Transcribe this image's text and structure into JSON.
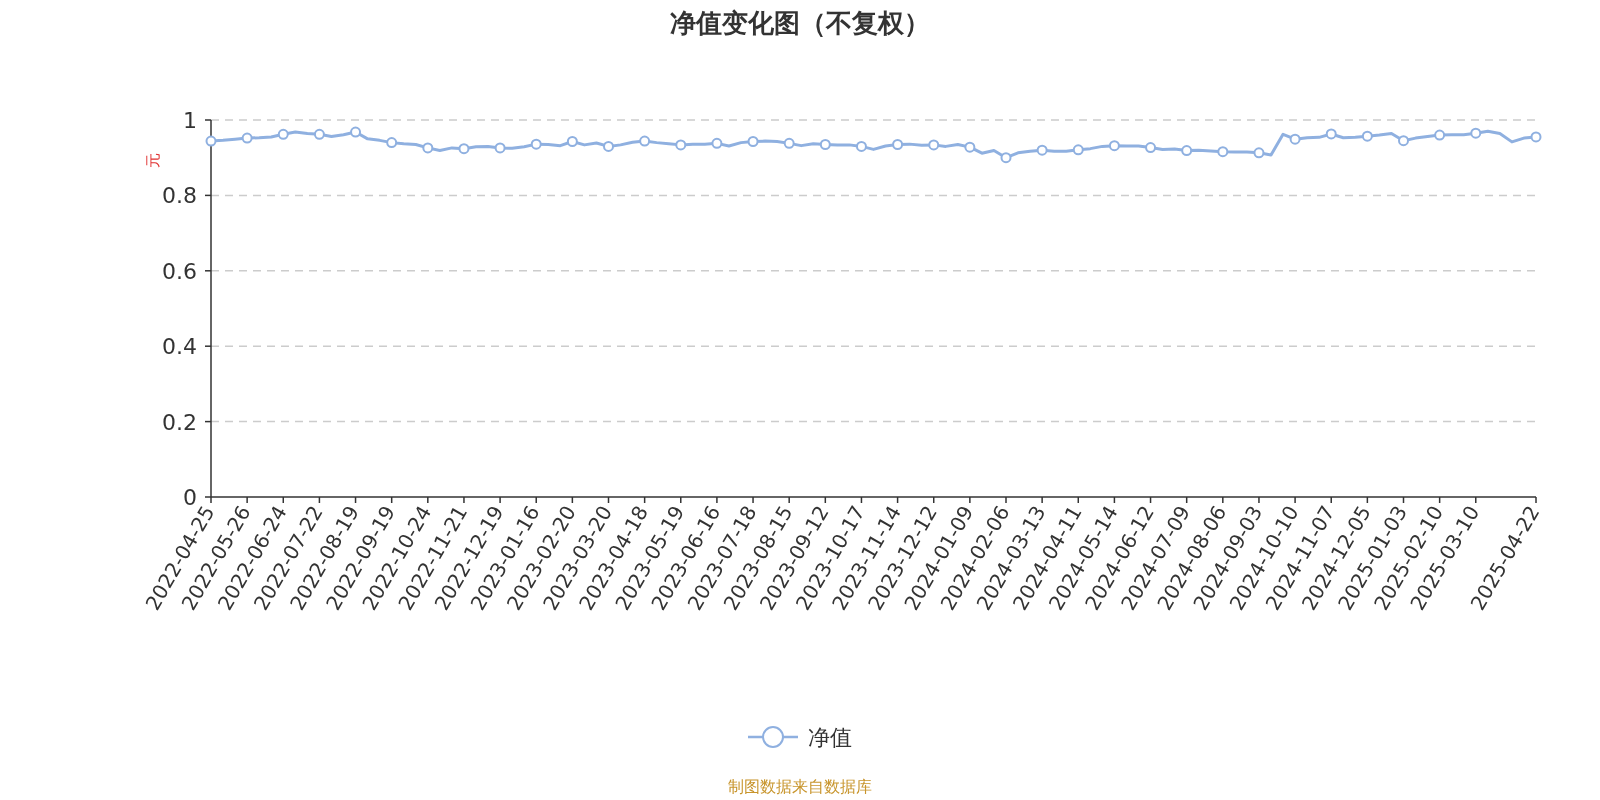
{
  "chart_data": {
    "type": "line",
    "title": "净值变化图（不复权）",
    "ylabel": "元",
    "categories": [
      "2022-04-25",
      null,
      null,
      "2022-05-26",
      null,
      null,
      "2022-06-24",
      null,
      null,
      "2022-07-22",
      null,
      null,
      "2022-08-19",
      null,
      null,
      "2022-09-19",
      null,
      null,
      "2022-10-24",
      null,
      null,
      "2022-11-21",
      null,
      null,
      "2022-12-19",
      null,
      null,
      "2023-01-16",
      null,
      null,
      "2023-02-20",
      null,
      null,
      "2023-03-20",
      null,
      null,
      "2023-04-18",
      null,
      null,
      "2023-05-19",
      null,
      null,
      "2023-06-16",
      null,
      null,
      "2023-07-18",
      null,
      null,
      "2023-08-15",
      null,
      null,
      "2023-09-12",
      null,
      null,
      "2023-10-17",
      null,
      null,
      "2023-11-14",
      null,
      null,
      "2023-12-12",
      null,
      null,
      "2024-01-09",
      null,
      null,
      "2024-02-06",
      null,
      null,
      "2024-03-13",
      null,
      null,
      "2024-04-11",
      null,
      null,
      "2024-05-14",
      null,
      null,
      "2024-06-12",
      null,
      null,
      "2024-07-09",
      null,
      null,
      "2024-08-06",
      null,
      null,
      "2024-09-03",
      null,
      null,
      "2024-10-10",
      null,
      null,
      "2024-11-07",
      null,
      null,
      "2024-12-05",
      null,
      null,
      "2025-01-03",
      null,
      null,
      "2025-02-10",
      null,
      null,
      "2025-03-10",
      null,
      null,
      null,
      null,
      "2025-04-22"
    ],
    "series": [
      {
        "name": "净值",
        "color": "#8fb0e0",
        "values": [
          0.944,
          0.946,
          0.949,
          0.952,
          0.953,
          0.955,
          0.962,
          0.968,
          0.964,
          0.962,
          0.956,
          0.961,
          0.968,
          0.95,
          0.946,
          0.94,
          0.937,
          0.935,
          0.926,
          0.919,
          0.926,
          0.924,
          0.929,
          0.93,
          0.926,
          0.925,
          0.929,
          0.936,
          0.935,
          0.932,
          0.943,
          0.934,
          0.939,
          0.93,
          0.934,
          0.941,
          0.944,
          0.94,
          0.937,
          0.934,
          0.936,
          0.936,
          0.938,
          0.931,
          0.94,
          0.943,
          0.944,
          0.943,
          0.938,
          0.932,
          0.937,
          0.935,
          0.934,
          0.934,
          0.93,
          0.922,
          0.931,
          0.935,
          0.936,
          0.933,
          0.934,
          0.93,
          0.935,
          0.928,
          0.912,
          0.919,
          0.9,
          0.913,
          0.917,
          0.92,
          0.917,
          0.917,
          0.921,
          0.924,
          0.93,
          0.932,
          0.931,
          0.931,
          0.927,
          0.922,
          0.923,
          0.919,
          0.92,
          0.918,
          0.916,
          0.915,
          0.915,
          0.913,
          0.907,
          0.962,
          0.949,
          0.953,
          0.954,
          0.963,
          0.953,
          0.954,
          0.957,
          0.96,
          0.964,
          0.945,
          0.952,
          0.956,
          0.96,
          0.961,
          0.961,
          0.965,
          0.97,
          0.964,
          0.942,
          0.952,
          0.955
        ]
      }
    ],
    "ylim": [
      0,
      1
    ],
    "yticks": [
      0,
      0.2,
      0.4,
      0.6,
      0.8,
      1
    ],
    "grid": "y",
    "legend": "bottom",
    "line_style": "solid",
    "annotations": [
      "制图数据来自数据库"
    ]
  }
}
